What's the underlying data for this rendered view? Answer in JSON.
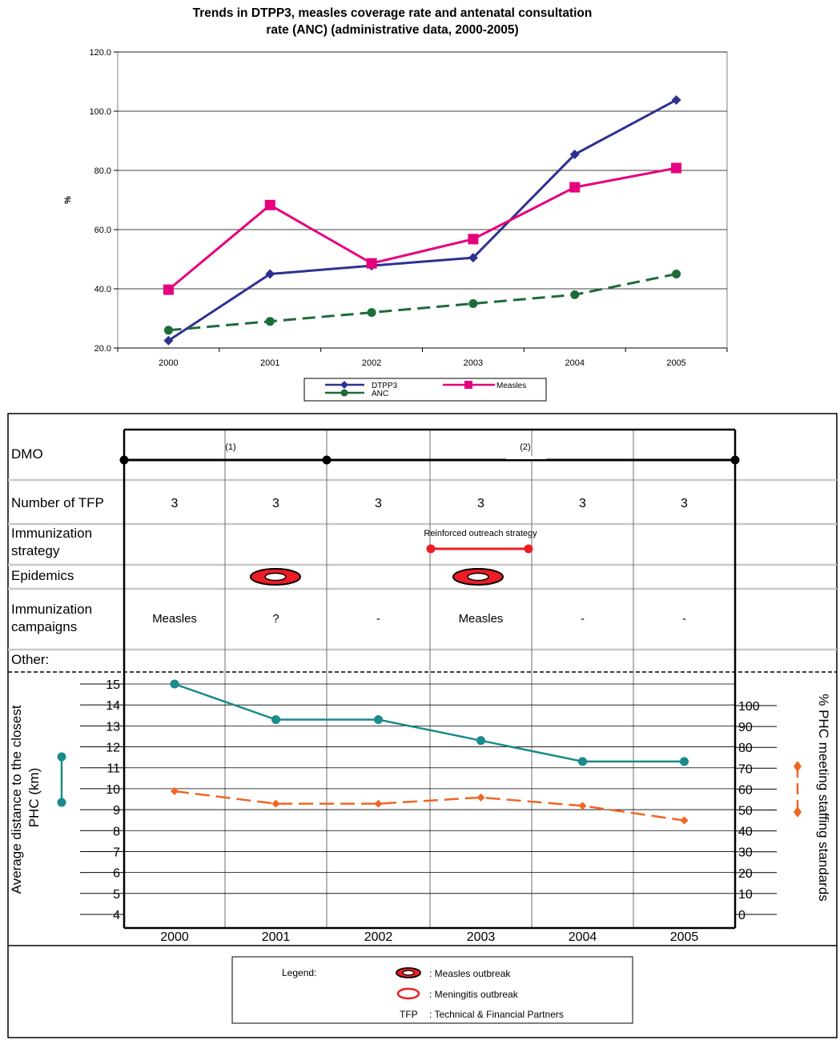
{
  "colors": {
    "dtpp3": "#2e3192",
    "measles": "#e6007e",
    "anc": "#1e6b3a",
    "distance": "#1a8a8a",
    "staffing": "#f26522",
    "epidemic_fill": "#ee1c25"
  },
  "chart_data": [
    {
      "type": "line",
      "title_lines": [
        "Trends in DTPP3, measles coverage rate and antenatal consultation",
        "rate (ANC) (administrative data, 2000-2005)"
      ],
      "ylabel": "%",
      "xlabel": "",
      "categories": [
        "2000",
        "2001",
        "2002",
        "2003",
        "2004",
        "2005"
      ],
      "ylim": [
        20,
        120
      ],
      "yticks": [
        "20.0",
        "40.0",
        "60.0",
        "80.0",
        "100.0",
        "120.0"
      ],
      "grid": true,
      "legend_position": "bottom",
      "series": [
        {
          "name": "DTPP3",
          "values": [
            22.5,
            45.0,
            47.8,
            50.5,
            85.4,
            103.8
          ],
          "marker": "diamond",
          "line": "solid"
        },
        {
          "name": "Measles",
          "values": [
            39.7,
            68.3,
            48.6,
            56.8,
            74.3,
            80.8
          ],
          "marker": "square",
          "line": "solid"
        },
        {
          "name": "ANC",
          "values": [
            26.0,
            29.0,
            32.0,
            35.0,
            38.0,
            45.0
          ],
          "marker": "circle",
          "line": "dashed"
        }
      ]
    },
    {
      "type": "line",
      "title": "",
      "categories": [
        "2000",
        "2001",
        "2002",
        "2003",
        "2004",
        "2005"
      ],
      "ylabel_left": "Average distance to the closest PHC (km)",
      "ylabel_right": "% PHC meeting staffing standards",
      "ylim_left": [
        4,
        15
      ],
      "yticks_left": [
        "15",
        "14",
        "13",
        "12",
        "11",
        "10",
        "9",
        "8",
        "7",
        "6",
        "5",
        "4"
      ],
      "ylim_right": [
        0,
        100
      ],
      "yticks_right": [
        "100",
        "90",
        "80",
        "70",
        "60",
        "50",
        "40",
        "30",
        "20",
        "10",
        "0"
      ],
      "series": [
        {
          "name": "",
          "axis": "left",
          "values": [
            15.0,
            13.3,
            13.3,
            12.3,
            11.3,
            11.3
          ],
          "marker": "circle",
          "line": "solid"
        },
        {
          "name": "",
          "axis": "right",
          "values": [
            59,
            53,
            53,
            56,
            52,
            45
          ],
          "marker": "diamond",
          "line": "dashed"
        }
      ]
    }
  ],
  "table": {
    "rows": {
      "dmo": "DMO",
      "tfp": "Number of TFP",
      "strategy": "Immunization strategy",
      "epidemics": "Epidemics",
      "campaigns": "Immunization campaigns",
      "other": "Other:"
    },
    "dmo_notes": [
      "(1)",
      "(2)"
    ],
    "tfp_values": [
      "3",
      "3",
      "3",
      "3",
      "3",
      "3"
    ],
    "strategy_label": "Reinforced outreach strategy",
    "campaign_values": [
      "Measles",
      "?",
      "-",
      "Measles",
      "-",
      "-"
    ],
    "epidemic_icon": "measles-outbreak-icon"
  },
  "legend": {
    "title": "Legend:",
    "items": [
      {
        "icon": "measles-outbreak-icon",
        "label": ": Measles outbreak"
      },
      {
        "icon": "meningitis-outbreak-icon",
        "label": ": Meningitis outbreak"
      },
      {
        "icon": "TFP",
        "label": ": Technical & Financial Partners"
      }
    ]
  }
}
